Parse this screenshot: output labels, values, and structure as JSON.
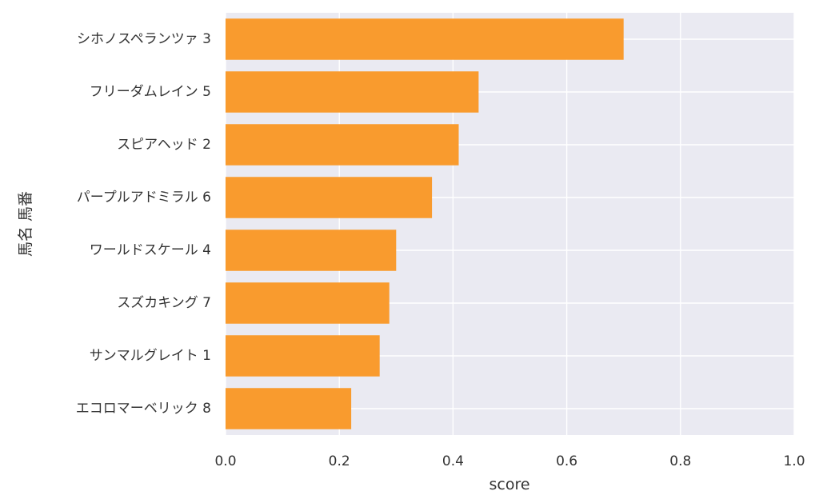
{
  "chart_data": {
    "type": "bar",
    "orientation": "horizontal",
    "categories": [
      "シホノスペランツァ 3",
      "フリーダムレイン 5",
      "スピアヘッド 2",
      "パープルアドミラル 6",
      "ワールドスケール 4",
      "スズカキング 7",
      "サンマルグレイト 1",
      "エコロマーベリック 8"
    ],
    "values": [
      0.7,
      0.445,
      0.41,
      0.363,
      0.3,
      0.288,
      0.271,
      0.221
    ],
    "xlabel": "score",
    "ylabel": "馬名 馬番",
    "xlim": [
      0.0,
      1.0
    ],
    "xticks": [
      "0.0",
      "0.2",
      "0.4",
      "0.6",
      "0.8",
      "1.0"
    ],
    "grid": true,
    "colors": {
      "bar": "#f99b2e",
      "plot_background": "#eaeaf2",
      "grid": "#ffffff",
      "text": "#333333"
    }
  }
}
